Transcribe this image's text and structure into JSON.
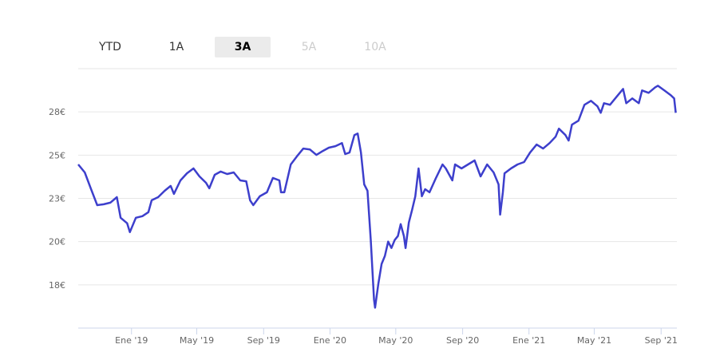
{
  "range_selector": {
    "buttons": [
      {
        "label": "YTD",
        "state": "normal"
      },
      {
        "label": "1A",
        "state": "normal"
      },
      {
        "label": "3A",
        "state": "selected"
      },
      {
        "label": "5A",
        "state": "disabled"
      },
      {
        "label": "10A",
        "state": "disabled"
      }
    ]
  },
  "chart_data": {
    "type": "line",
    "title": "",
    "xlabel": "",
    "ylabel": "",
    "grid": true,
    "line_color": "#3d3fcc",
    "xlim": [
      "2018-09-25",
      "2021-09-30"
    ],
    "ylim": [
      15,
      30
    ],
    "y_ticks": [
      {
        "value": 17.5,
        "label": "18€"
      },
      {
        "value": 20,
        "label": "20€"
      },
      {
        "value": 22.5,
        "label": "23€"
      },
      {
        "value": 25,
        "label": "25€"
      },
      {
        "value": 27.5,
        "label": "28€"
      },
      {
        "value": 30,
        "label": ""
      }
    ],
    "x_ticks": [
      {
        "date": "2019-01-01",
        "label": "Ene '19"
      },
      {
        "date": "2019-05-01",
        "label": "May '19"
      },
      {
        "date": "2019-09-01",
        "label": "Sep '19"
      },
      {
        "date": "2020-01-01",
        "label": "Ene '20"
      },
      {
        "date": "2020-05-01",
        "label": "May '20"
      },
      {
        "date": "2020-09-01",
        "label": "Sep '20"
      },
      {
        "date": "2021-01-01",
        "label": "Ene '21"
      },
      {
        "date": "2021-05-01",
        "label": "May '21"
      },
      {
        "date": "2021-09-01",
        "label": "Sep '21"
      }
    ],
    "series": [
      {
        "points": [
          [
            "2018-09-25",
            24.46
          ],
          [
            "2018-10-07",
            24.0
          ],
          [
            "2018-10-18",
            23.08
          ],
          [
            "2018-10-30",
            22.11
          ],
          [
            "2018-11-11",
            22.16
          ],
          [
            "2018-11-23",
            22.25
          ],
          [
            "2018-12-05",
            22.57
          ],
          [
            "2018-12-12",
            21.38
          ],
          [
            "2018-12-24",
            21.06
          ],
          [
            "2018-12-29",
            20.55
          ],
          [
            "2019-01-09",
            21.38
          ],
          [
            "2019-01-21",
            21.47
          ],
          [
            "2019-02-01",
            21.7
          ],
          [
            "2019-02-07",
            22.39
          ],
          [
            "2019-02-19",
            22.57
          ],
          [
            "2019-03-03",
            22.94
          ],
          [
            "2019-03-14",
            23.22
          ],
          [
            "2019-03-20",
            22.76
          ],
          [
            "2019-04-01",
            23.54
          ],
          [
            "2019-04-13",
            23.95
          ],
          [
            "2019-04-25",
            24.23
          ],
          [
            "2019-05-06",
            23.77
          ],
          [
            "2019-05-18",
            23.4
          ],
          [
            "2019-05-24",
            23.08
          ],
          [
            "2019-06-03",
            23.86
          ],
          [
            "2019-06-14",
            24.05
          ],
          [
            "2019-06-26",
            23.91
          ],
          [
            "2019-07-08",
            24.0
          ],
          [
            "2019-07-20",
            23.54
          ],
          [
            "2019-07-31",
            23.49
          ],
          [
            "2019-08-07",
            22.39
          ],
          [
            "2019-08-13",
            22.11
          ],
          [
            "2019-08-25",
            22.62
          ],
          [
            "2019-09-07",
            22.85
          ],
          [
            "2019-09-18",
            23.68
          ],
          [
            "2019-09-30",
            23.54
          ],
          [
            "2019-10-03",
            22.85
          ],
          [
            "2019-10-09",
            22.85
          ],
          [
            "2019-10-21",
            24.46
          ],
          [
            "2019-11-01",
            24.92
          ],
          [
            "2019-11-13",
            25.38
          ],
          [
            "2019-11-25",
            25.33
          ],
          [
            "2019-12-07",
            25.01
          ],
          [
            "2019-12-19",
            25.24
          ],
          [
            "2019-12-30",
            25.43
          ],
          [
            "2020-01-11",
            25.52
          ],
          [
            "2020-01-23",
            25.7
          ],
          [
            "2020-01-29",
            25.06
          ],
          [
            "2020-02-06",
            25.15
          ],
          [
            "2020-02-15",
            26.16
          ],
          [
            "2020-02-21",
            26.25
          ],
          [
            "2020-02-27",
            25.15
          ],
          [
            "2020-03-04",
            23.31
          ],
          [
            "2020-03-10",
            22.94
          ],
          [
            "2020-03-16",
            20.09
          ],
          [
            "2020-03-22",
            16.64
          ],
          [
            "2020-03-24",
            16.18
          ],
          [
            "2020-03-30",
            17.56
          ],
          [
            "2020-04-05",
            18.71
          ],
          [
            "2020-04-11",
            19.17
          ],
          [
            "2020-04-17",
            20.0
          ],
          [
            "2020-04-23",
            19.63
          ],
          [
            "2020-04-29",
            20.09
          ],
          [
            "2020-05-05",
            20.32
          ],
          [
            "2020-05-10",
            21.01
          ],
          [
            "2020-05-16",
            20.32
          ],
          [
            "2020-05-19",
            19.63
          ],
          [
            "2020-05-25",
            21.1
          ],
          [
            "2020-05-31",
            21.84
          ],
          [
            "2020-06-06",
            22.62
          ],
          [
            "2020-06-12",
            24.23
          ],
          [
            "2020-06-18",
            22.62
          ],
          [
            "2020-06-24",
            23.03
          ],
          [
            "2020-07-02",
            22.85
          ],
          [
            "2020-07-14",
            23.68
          ],
          [
            "2020-07-26",
            24.46
          ],
          [
            "2020-08-01",
            24.23
          ],
          [
            "2020-08-13",
            23.54
          ],
          [
            "2020-08-18",
            24.46
          ],
          [
            "2020-08-30",
            24.23
          ],
          [
            "2020-09-11",
            24.46
          ],
          [
            "2020-09-23",
            24.69
          ],
          [
            "2020-10-04",
            23.77
          ],
          [
            "2020-10-16",
            24.46
          ],
          [
            "2020-10-28",
            24.0
          ],
          [
            "2020-11-06",
            23.31
          ],
          [
            "2020-11-09",
            21.56
          ],
          [
            "2020-11-14",
            22.85
          ],
          [
            "2020-11-17",
            23.95
          ],
          [
            "2020-11-29",
            24.23
          ],
          [
            "2020-12-11",
            24.46
          ],
          [
            "2020-12-23",
            24.6
          ],
          [
            "2021-01-03",
            25.15
          ],
          [
            "2021-01-15",
            25.61
          ],
          [
            "2021-01-27",
            25.38
          ],
          [
            "2021-02-08",
            25.7
          ],
          [
            "2021-02-19",
            26.07
          ],
          [
            "2021-02-25",
            26.53
          ],
          [
            "2021-03-09",
            26.16
          ],
          [
            "2021-03-15",
            25.84
          ],
          [
            "2021-03-21",
            26.76
          ],
          [
            "2021-04-02",
            26.99
          ],
          [
            "2021-04-13",
            27.91
          ],
          [
            "2021-04-25",
            28.14
          ],
          [
            "2021-05-07",
            27.82
          ],
          [
            "2021-05-13",
            27.45
          ],
          [
            "2021-05-19",
            28.0
          ],
          [
            "2021-05-30",
            27.91
          ],
          [
            "2021-06-11",
            28.37
          ],
          [
            "2021-06-23",
            28.83
          ],
          [
            "2021-06-29",
            28.0
          ],
          [
            "2021-07-10",
            28.28
          ],
          [
            "2021-07-22",
            28.0
          ],
          [
            "2021-07-28",
            28.74
          ],
          [
            "2021-08-09",
            28.6
          ],
          [
            "2021-08-21",
            28.92
          ],
          [
            "2021-08-26",
            29.01
          ],
          [
            "2021-09-07",
            28.74
          ],
          [
            "2021-09-19",
            28.46
          ],
          [
            "2021-09-25",
            28.28
          ],
          [
            "2021-09-28",
            27.45
          ]
        ]
      }
    ]
  }
}
